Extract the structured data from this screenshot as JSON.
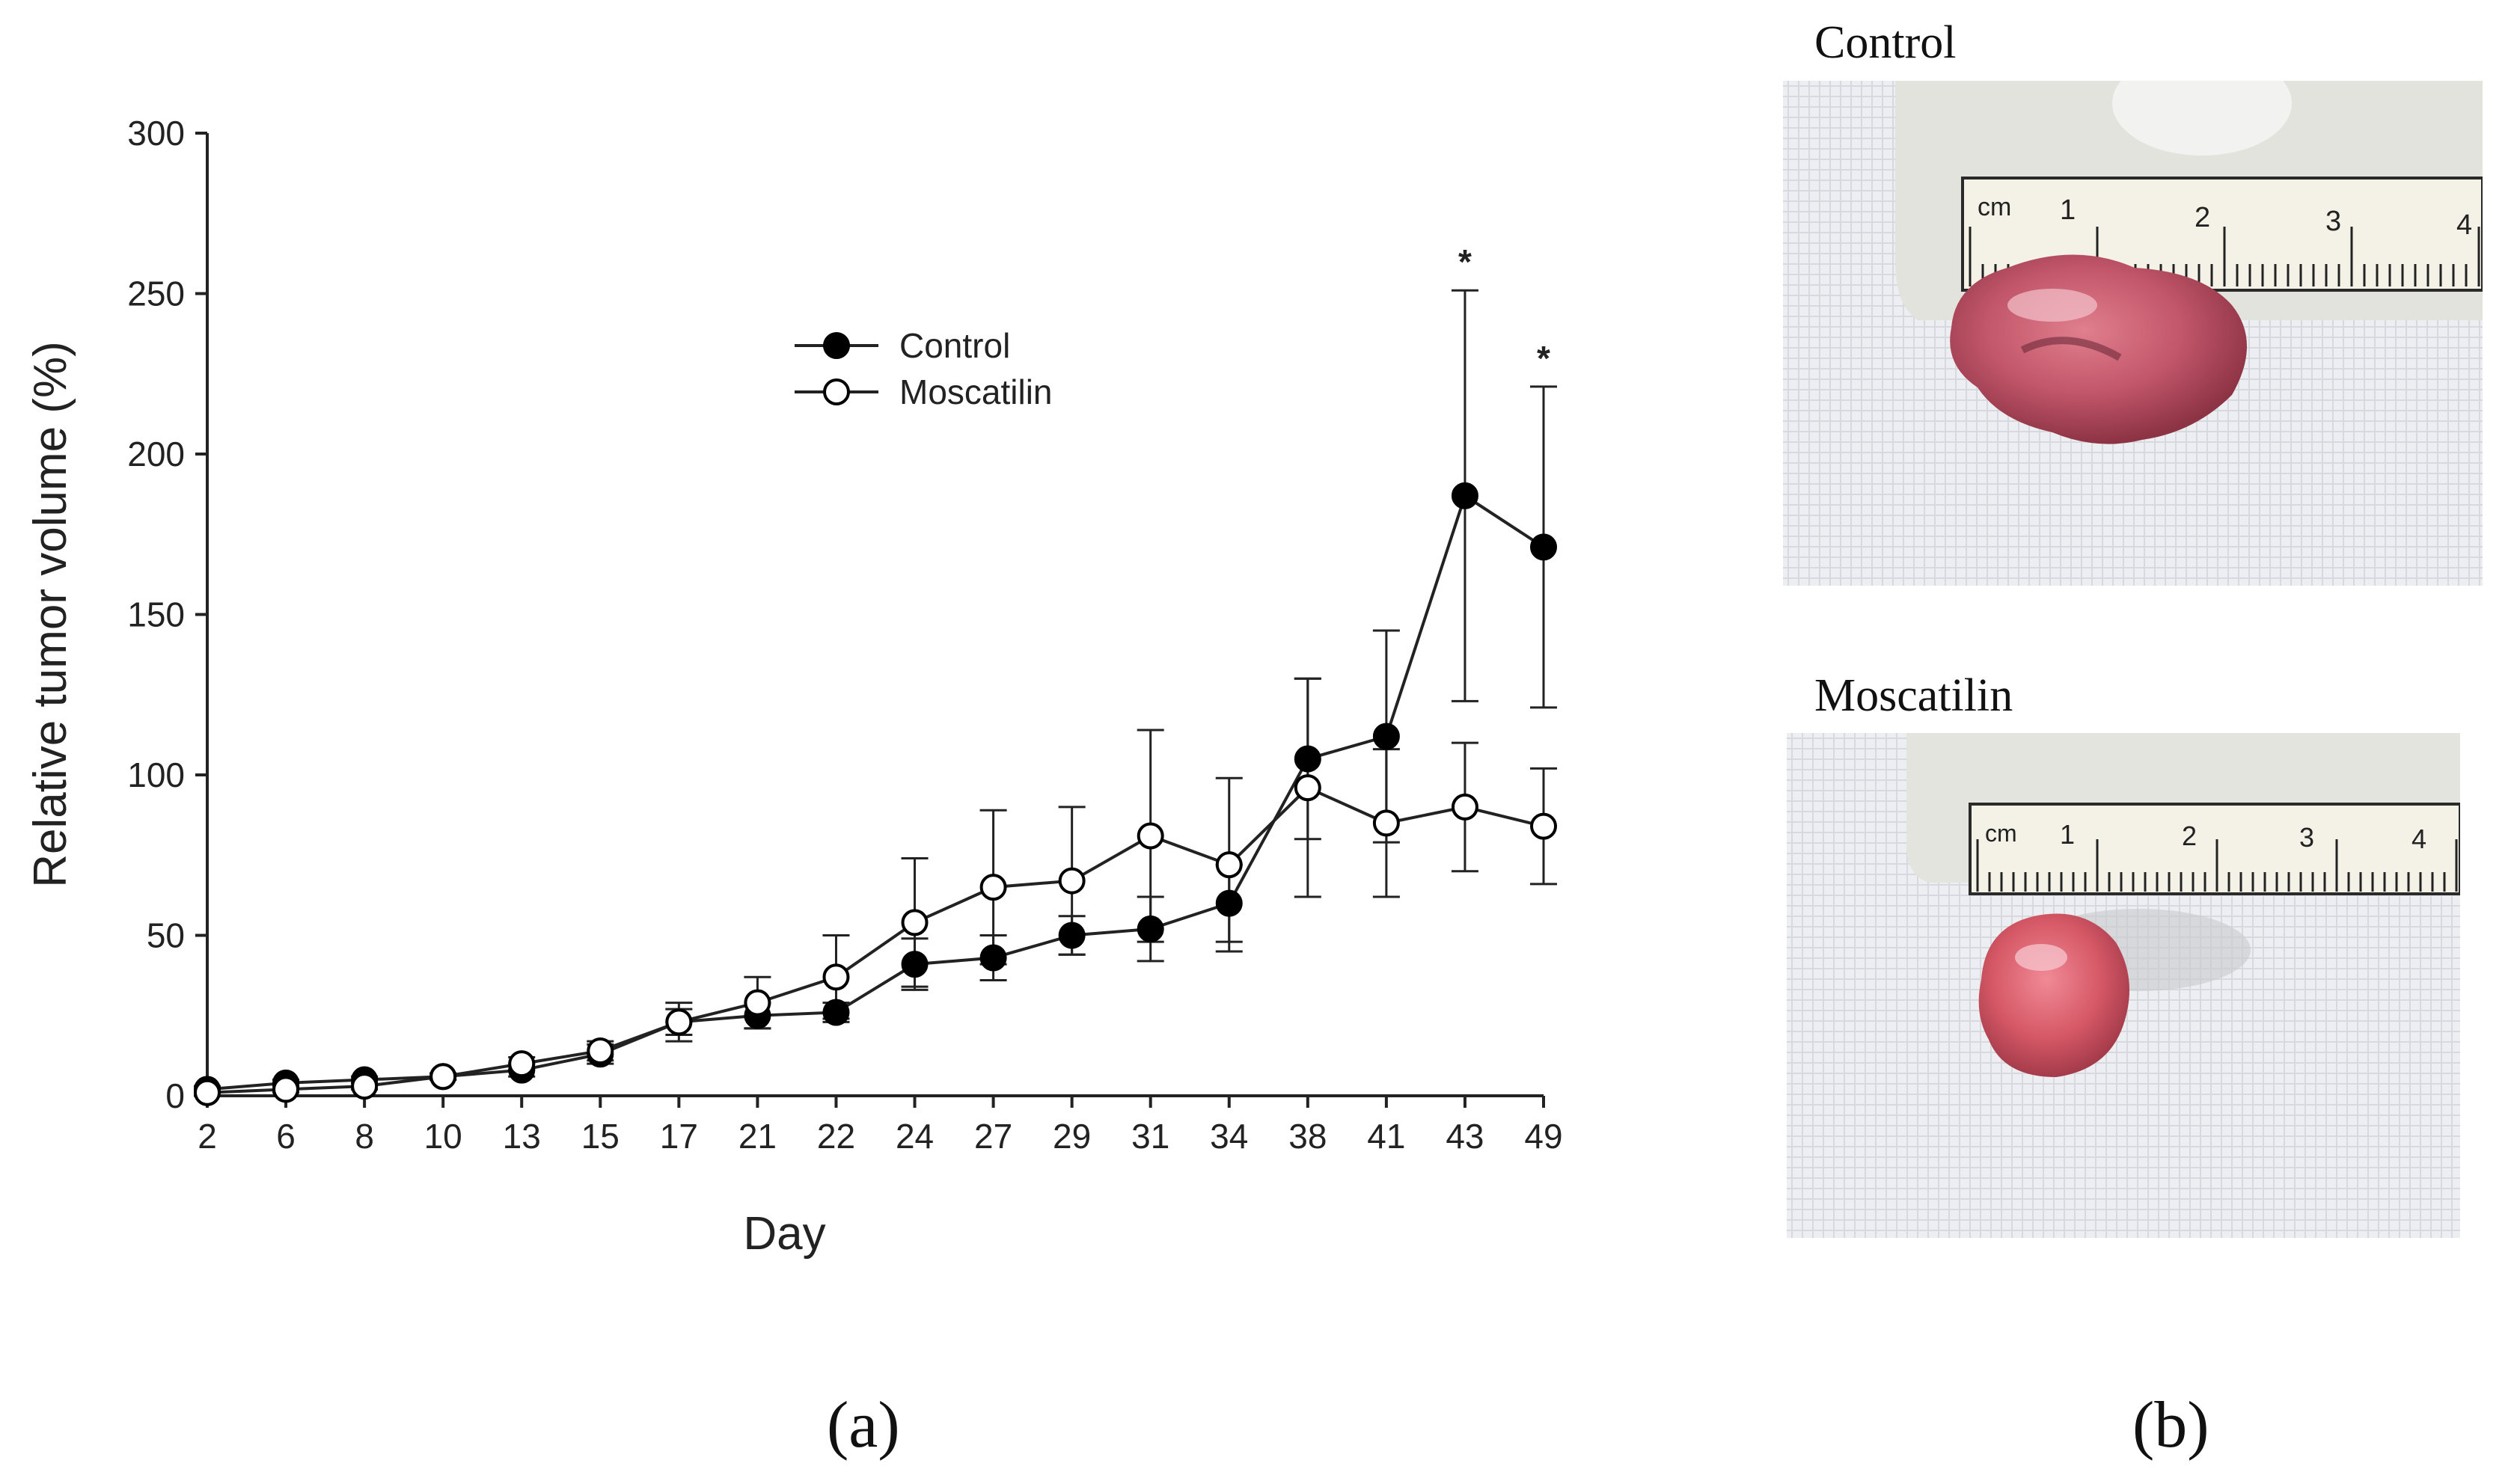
{
  "panels": {
    "a": {
      "label": "(a)"
    },
    "b": {
      "label": "(b)"
    }
  },
  "chart_data": {
    "type": "line",
    "title": "",
    "xlabel": "Day",
    "ylabel": "Relative tumor volume (%)",
    "categories": [
      "2",
      "6",
      "8",
      "10",
      "13",
      "15",
      "17",
      "21",
      "22",
      "24",
      "27",
      "29",
      "31",
      "34",
      "38",
      "41",
      "43",
      "49"
    ],
    "ylim": [
      0,
      300
    ],
    "yticks": [
      0,
      50,
      100,
      150,
      200,
      250,
      300
    ],
    "grid": false,
    "legend_position": "top-center",
    "series": [
      {
        "name": "Control",
        "marker": "filled-circle",
        "values": [
          2,
          4,
          5,
          6,
          8,
          13,
          23,
          25,
          26,
          41,
          43,
          50,
          52,
          60,
          105,
          112,
          187,
          171
        ],
        "error": [
          1,
          1,
          1,
          1,
          2,
          3,
          4,
          4,
          3,
          8,
          7,
          6,
          10,
          12,
          25,
          33,
          64,
          50
        ]
      },
      {
        "name": "Moscatilin",
        "marker": "open-circle",
        "values": [
          1,
          2,
          3,
          6,
          10,
          14,
          23,
          29,
          37,
          54,
          65,
          67,
          81,
          72,
          96,
          85,
          90,
          84
        ],
        "error": [
          1,
          1,
          1,
          1,
          2,
          3,
          6,
          8,
          13,
          20,
          24,
          23,
          33,
          27,
          34,
          23,
          20,
          18
        ]
      }
    ],
    "annotations": [
      {
        "category": "43",
        "text": "*"
      },
      {
        "category": "49",
        "text": "*"
      }
    ]
  },
  "photos": [
    {
      "title": "Control",
      "ruler_unit": "cm",
      "ruler_numbers": [
        "1",
        "2",
        "3",
        "4"
      ]
    },
    {
      "title": "Moscatilin",
      "ruler_unit": "cm",
      "ruler_numbers": [
        "1",
        "2",
        "3",
        "4"
      ]
    }
  ],
  "colors": {
    "control_marker": "#000000",
    "moscatilin_marker": "#ffffff",
    "line": "#222222",
    "tumor": "#c9576a",
    "gauze": "#eef0f2",
    "ruler": "#f6f4ea"
  }
}
